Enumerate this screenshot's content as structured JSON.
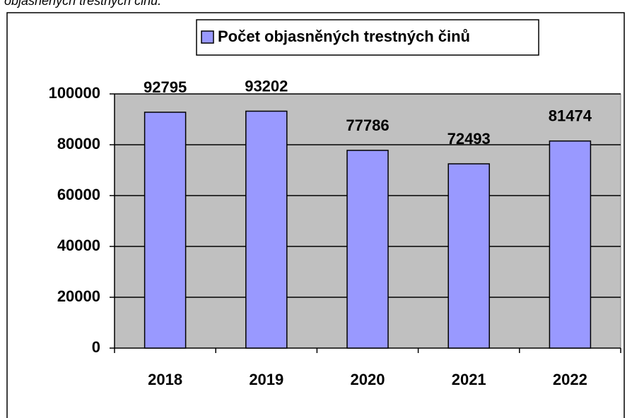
{
  "caption": "t objasněných trestných činů.",
  "chart_data": {
    "type": "bar",
    "categories": [
      "2018",
      "2019",
      "2020",
      "2021",
      "2022"
    ],
    "series": [
      {
        "name": "Počet objasněných trestných činů",
        "color": "#9999ff",
        "values": [
          92795,
          93202,
          77786,
          72493,
          81474
        ]
      }
    ],
    "ylim": [
      0,
      100000
    ],
    "yticks": [
      0,
      20000,
      40000,
      60000,
      80000,
      100000
    ],
    "grid": true,
    "plot_background": "#c0c0c0",
    "legend": "top"
  }
}
